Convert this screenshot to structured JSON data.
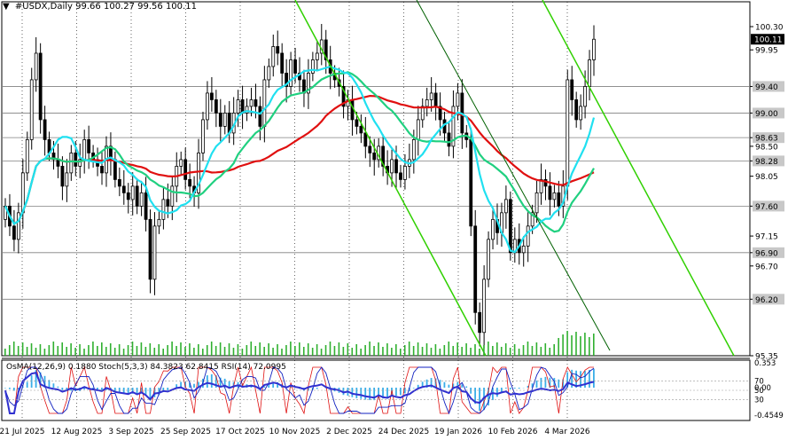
{
  "header": {
    "arrow": "▼",
    "symbol": "#USDX,Daily",
    "ohlc": "99.66 100.27 99.56 100.11"
  },
  "indicators_header": {
    "osma": "OsMA(12,26,9) 0.1880",
    "stoch": "Stoch(5,3,3) 84.3823 62.8415",
    "rsi": "RSI(14) 72.0995"
  },
  "colors": {
    "background": "#ffffff",
    "candle": "#000000",
    "ma_red": "#e01010",
    "ma_green": "#20d080",
    "ma_cyan": "#20e0f0",
    "channel": "#30d000",
    "trendline": "#006000",
    "level_line": "#808080",
    "last_price_bg": "#000000",
    "volume": "#30b030",
    "osma_hist": "#3aaee8",
    "stoch_main": "#1020c0",
    "stoch_signal": "#e01010",
    "rsi": "#3030d0"
  },
  "chart_data": {
    "type": "candlestick",
    "symbol": "#USDX",
    "timeframe": "Daily",
    "last_price": 100.11,
    "yticks": [
      100.3,
      99.95,
      99.4,
      99.0,
      98.63,
      98.5,
      98.28,
      98.05,
      97.6,
      97.15,
      96.9,
      96.7,
      96.2,
      95.35
    ],
    "ylim": [
      95.35,
      100.5
    ],
    "level_lines": [
      99.4,
      99.0,
      98.63,
      98.28,
      97.6,
      96.9,
      96.2
    ],
    "level_labels": [
      "99.40",
      "99.00",
      "98.63",
      "98.28",
      "97.60",
      "96.90",
      "96.20"
    ],
    "x_labels": [
      "21 Jul 2025",
      "12 Aug 2025",
      "3 Sep 2025",
      "25 Sep 2025",
      "17 Oct 2025",
      "10 Nov 2025",
      "2 Dec 2025",
      "24 Dec 2025",
      "19 Jan 2026",
      "10 Feb 2026",
      "4 Mar 2026"
    ],
    "closes": [
      97.6,
      97.3,
      97.1,
      97.5,
      98.1,
      98.6,
      99.5,
      99.9,
      98.9,
      98.6,
      98.4,
      98.3,
      98.2,
      97.9,
      98.1,
      98.4,
      98.2,
      98.3,
      98.6,
      98.4,
      98.3,
      98.2,
      98.1,
      98.5,
      98.3,
      98.0,
      97.9,
      97.8,
      97.7,
      97.9,
      97.6,
      97.8,
      97.4,
      96.5,
      97.3,
      97.4,
      97.7,
      97.6,
      97.9,
      98.2,
      98.3,
      98.0,
      97.9,
      97.8,
      98.4,
      98.9,
      99.3,
      99.2,
      99.0,
      98.8,
      99.0,
      98.7,
      99.0,
      99.2,
      99.0,
      99.1,
      99.2,
      99.1,
      98.8,
      99.5,
      99.7,
      100.0,
      99.9,
      99.6,
      99.4,
      99.8,
      99.6,
      99.5,
      99.3,
      99.6,
      99.8,
      99.9,
      100.1,
      99.8,
      99.6,
      99.5,
      99.4,
      99.1,
      99.2,
      98.9,
      98.8,
      98.7,
      98.5,
      98.4,
      98.3,
      98.5,
      98.2,
      98.1,
      98.3,
      98.1,
      98.0,
      98.2,
      98.3,
      98.6,
      98.9,
      99.1,
      99.2,
      99.3,
      99.1,
      98.9,
      98.7,
      98.5,
      99.1,
      99.3,
      98.7,
      98.6,
      97.3,
      96.0,
      95.7,
      96.5,
      97.1,
      97.4,
      97.2,
      97.5,
      97.7,
      96.9,
      97.1,
      96.9,
      97.0,
      97.3,
      97.5,
      97.8,
      98.0,
      97.9,
      97.7,
      97.8,
      97.6,
      97.9,
      99.5,
      99.2,
      98.9,
      99.1,
      99.4,
      99.8,
      100.11
    ],
    "osma_ylim": [
      -0.4549,
      0.353
    ],
    "osma_ticks": [
      "0.353",
      "70",
      "50",
      "30",
      "-0.4549"
    ],
    "osma_zero_label": "0.00"
  }
}
